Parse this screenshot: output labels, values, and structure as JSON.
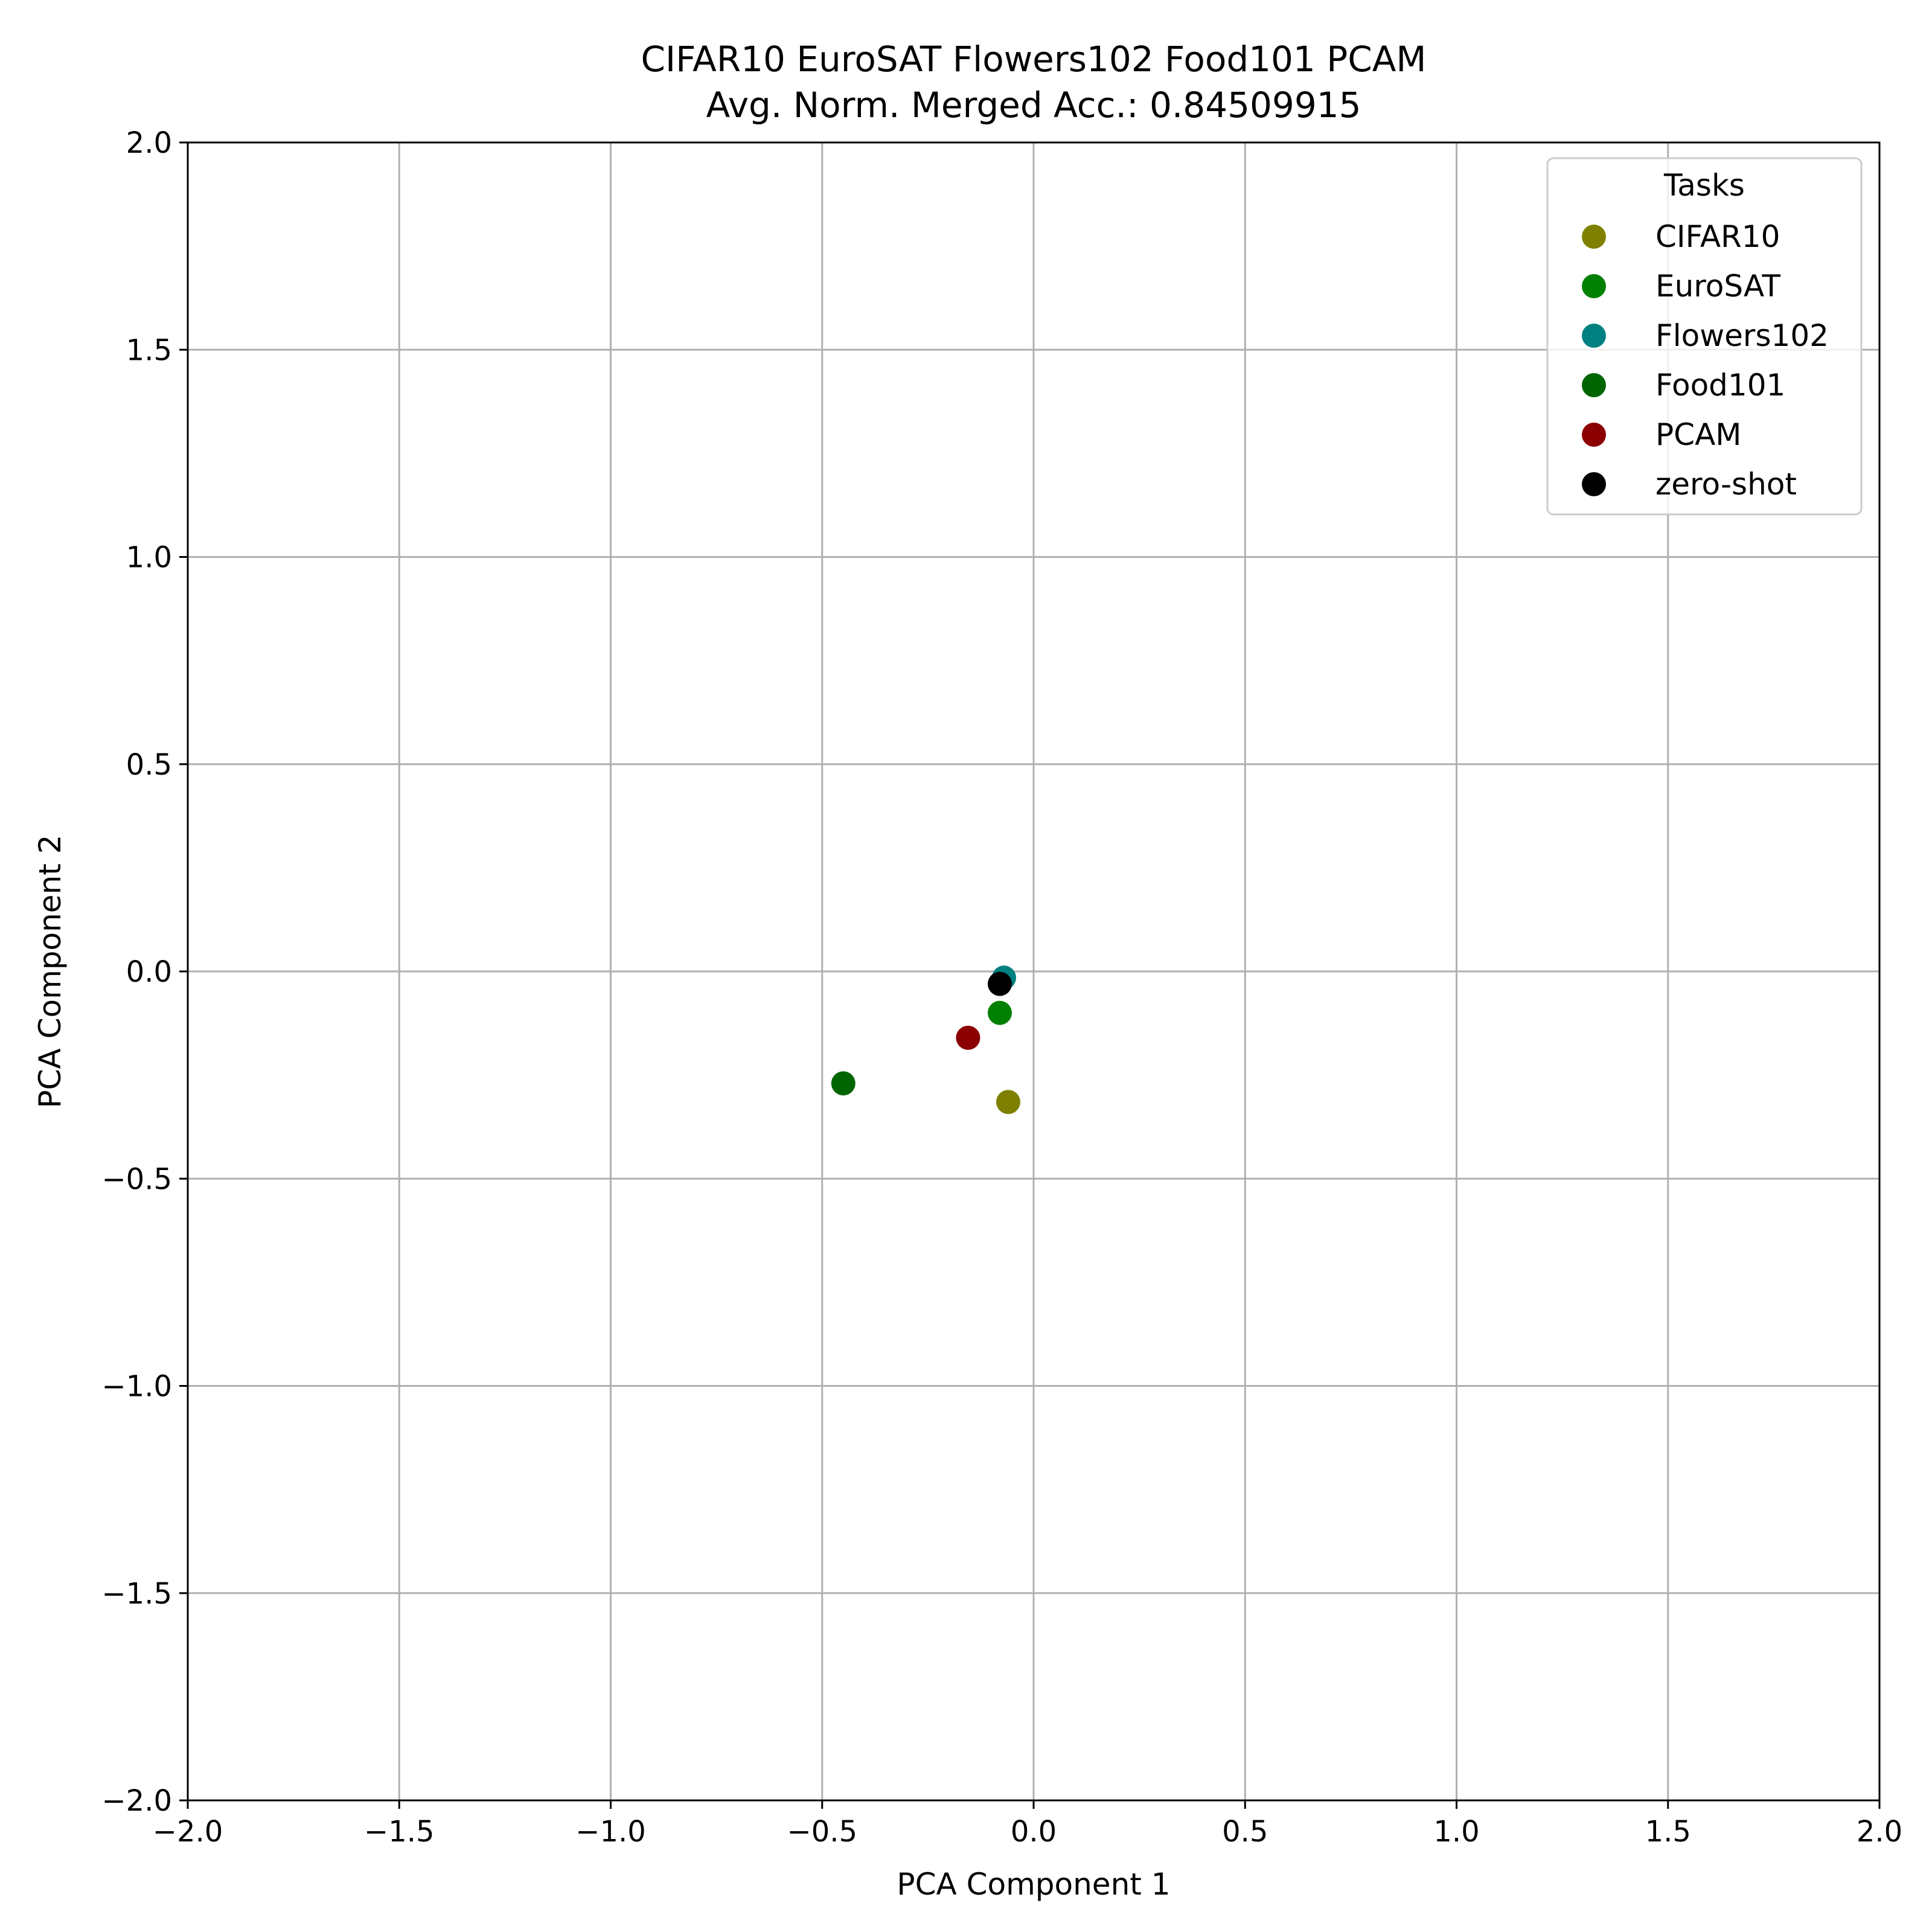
{
  "chart_data": {
    "type": "scatter",
    "title": "CIFAR10 EuroSAT Flowers102 Food101 PCAM",
    "subtitle": "Avg. Norm. Merged Acc.: 0.84509915",
    "xlabel": "PCA Component 1",
    "ylabel": "PCA Component 2",
    "xlim": [
      -2.0,
      2.0
    ],
    "ylim": [
      -2.0,
      2.0
    ],
    "xticks": [
      -2.0,
      -1.5,
      -1.0,
      -0.5,
      0.0,
      0.5,
      1.0,
      1.5,
      2.0
    ],
    "yticks": [
      -2.0,
      -1.5,
      -1.0,
      -0.5,
      0.0,
      0.5,
      1.0,
      1.5,
      2.0
    ],
    "xtick_labels": [
      "−2.0",
      "−1.5",
      "−1.0",
      "−0.5",
      "0.0",
      "0.5",
      "1.0",
      "1.5",
      "2.0"
    ],
    "ytick_labels": [
      "−2.0",
      "−1.5",
      "−1.0",
      "−0.5",
      "0.0",
      "0.5",
      "1.0",
      "1.5",
      "2.0"
    ],
    "grid": true,
    "legend": {
      "title": "Tasks",
      "placement": "top-right"
    },
    "series": [
      {
        "name": "CIFAR10",
        "color": "#808000",
        "points": [
          {
            "x": -0.06,
            "y": -0.315
          }
        ]
      },
      {
        "name": "EuroSAT",
        "color": "#008000",
        "points": [
          {
            "x": -0.08,
            "y": -0.1
          }
        ]
      },
      {
        "name": "Flowers102",
        "color": "#008080",
        "points": [
          {
            "x": -0.07,
            "y": -0.015
          }
        ]
      },
      {
        "name": "Food101",
        "color": "#006400",
        "points": [
          {
            "x": -0.45,
            "y": -0.27
          }
        ]
      },
      {
        "name": "PCAM",
        "color": "#8b0000",
        "points": [
          {
            "x": -0.155,
            "y": -0.16
          }
        ]
      },
      {
        "name": "zero-shot",
        "color": "#000000",
        "points": [
          {
            "x": -0.08,
            "y": -0.03
          }
        ]
      }
    ]
  }
}
